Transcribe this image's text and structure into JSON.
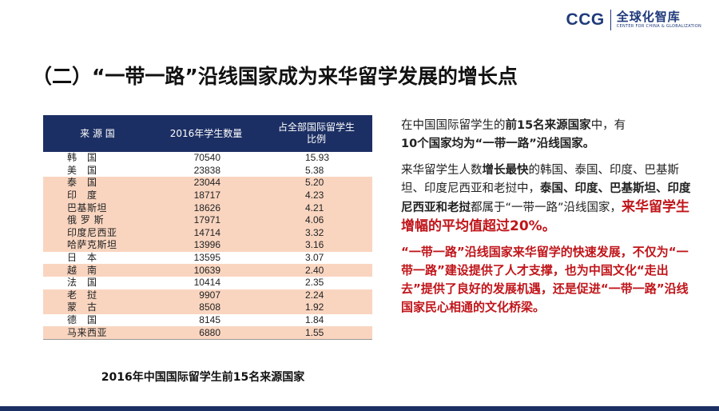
{
  "logo": {
    "ccg": "CCG",
    "cn": "全球化智库",
    "en": "CENTER FOR CHINA & GLOBALIZATION"
  },
  "title": "（二）“一带一路”沿线国家成为来华留学发展的增长点",
  "table": {
    "headers": {
      "country": "来 源 国",
      "students": "2016年学生数量",
      "share_line1": "占全部国际留学生",
      "share_line2": "比例"
    },
    "rows": [
      {
        "country": "韩　国",
        "students": "70540",
        "share": "15.93"
      },
      {
        "country": "美　国",
        "students": "23838",
        "share": "5.38"
      },
      {
        "country": "泰　国",
        "students": "23044",
        "share": "5.20"
      },
      {
        "country": "印　度",
        "students": "18717",
        "share": "4.23"
      },
      {
        "country": "巴基斯坦",
        "students": "18626",
        "share": "4.21"
      },
      {
        "country": "俄 罗 斯",
        "students": "17971",
        "share": "4.06"
      },
      {
        "country": "印度尼西亚",
        "students": "14714",
        "share": "3.32"
      },
      {
        "country": "哈萨克斯坦",
        "students": "13996",
        "share": "3.16"
      },
      {
        "country": "日　本",
        "students": "13595",
        "share": "3.07"
      },
      {
        "country": "越　南",
        "students": "10639",
        "share": "2.40"
      },
      {
        "country": "法　国",
        "students": "10414",
        "share": "2.35"
      },
      {
        "country": "老　挝",
        "students": "9907",
        "share": "2.24"
      },
      {
        "country": "蒙　古",
        "students": "8508",
        "share": "1.92"
      },
      {
        "country": "德　国",
        "students": "8145",
        "share": "1.84"
      },
      {
        "country": "马来西亚",
        "students": "6880",
        "share": "1.55"
      }
    ],
    "caption": "2016年中国国际留学生前15名来源国家"
  },
  "text": {
    "p1_a": "在中国国际留学生的",
    "p1_b": "前15名来源国家",
    "p1_c": "中，有",
    "p1_d": "10个国家均为“一带一路”沿线国家。",
    "p2_a": "来华留学生人数",
    "p2_b": "增长最快",
    "p2_c": "的韩国、泰国、印度、巴基斯坦、印度尼西亚和老挝中，",
    "p2_d": "泰国、印度、巴基斯坦、印度尼西亚和老挝",
    "p2_e": "都属于“一带一路”沿线国家，",
    "p2_f": "来华留学生增幅的平均值超过20%。",
    "p3": "“一带一路”沿线国家来华留学的快速发展，不仅为“一带一路”建设提供了人才支撑，也为中国文化“走出去”提供了良好的发展机遇，还是促进“一带一路”沿线国家民心相通的文化桥梁。"
  },
  "colors": {
    "header_bg": "#1c2f64",
    "row_highlight": "#f9d5c0",
    "accent_red": "#c0151a"
  }
}
